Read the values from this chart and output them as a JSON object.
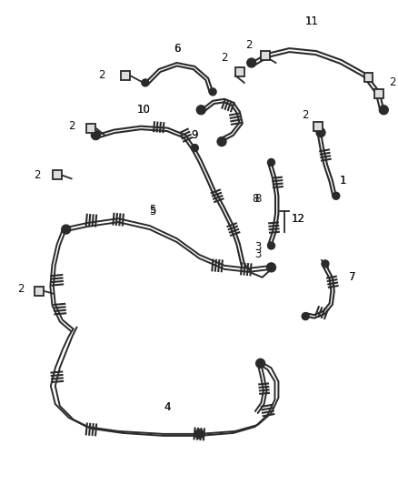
{
  "bg_color": "#ffffff",
  "line_color": "#2a2a2a",
  "label_color": "#111111",
  "fig_width": 4.38,
  "fig_height": 5.33,
  "dpi": 100
}
